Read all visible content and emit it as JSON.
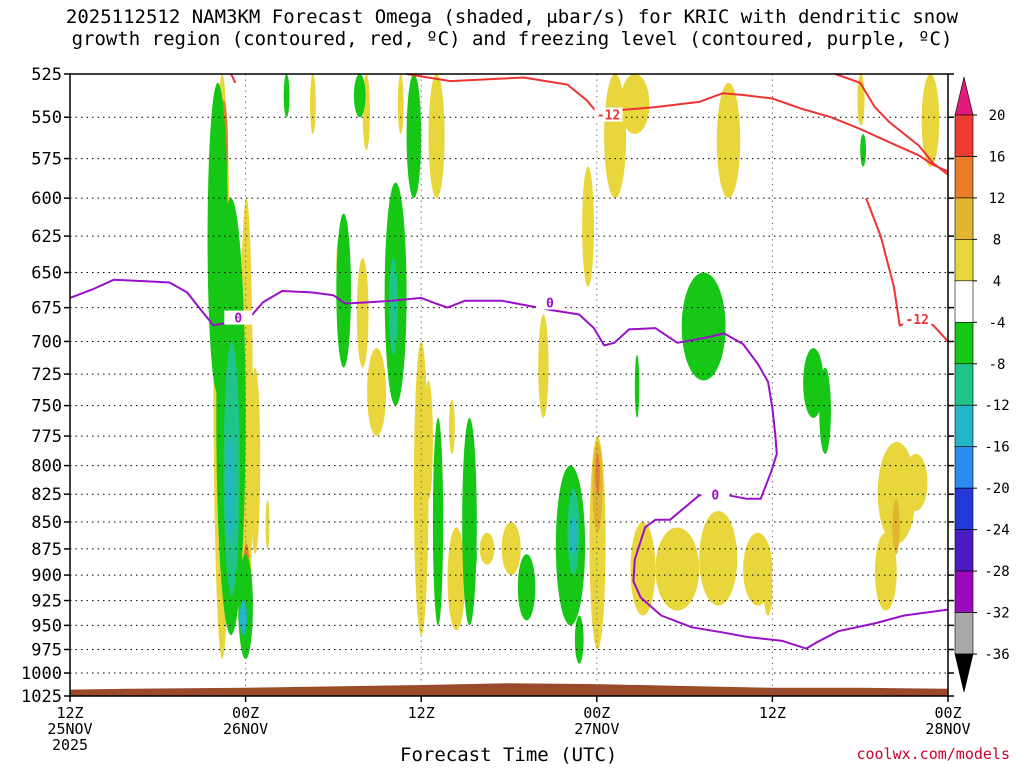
{
  "title_line1": "2025112512 NAM3KM Forecast Omega (shaded, μbar/s) for KRIC with dendritic snow",
  "title_line2": "growth region (contoured, red, ºC) and freezing level (contoured, purple, ºC)",
  "credit": "coolwx.com/models",
  "chart_data": {
    "type": "time-height cross section",
    "title": "2025112512 NAM3KM Forecast Omega (shaded, μbar/s) for KRIC with dendritic snow growth region (contoured, red, ºC) and freezing level (contoured, purple, ºC)",
    "xlabel": "Forecast Time (UTC)",
    "ylabel": "Pressure (hPa)",
    "x_range_hours": [
      0,
      60
    ],
    "y_range_hPa": [
      525,
      1025
    ],
    "y_ticks": [
      525,
      550,
      575,
      600,
      625,
      650,
      675,
      700,
      725,
      750,
      775,
      800,
      825,
      850,
      875,
      900,
      925,
      950,
      975,
      1000,
      1025
    ],
    "x_ticks": [
      {
        "hour": 0,
        "line1": "12Z",
        "line2": "25NOV",
        "line3": "2025"
      },
      {
        "hour": 12,
        "line1": "00Z",
        "line2": "26NOV",
        "line3": ""
      },
      {
        "hour": 24,
        "line1": "12Z",
        "line2": "",
        "line3": ""
      },
      {
        "hour": 36,
        "line1": "00Z",
        "line2": "27NOV",
        "line3": ""
      },
      {
        "hour": 48,
        "line1": "12Z",
        "line2": "",
        "line3": ""
      },
      {
        "hour": 60,
        "line1": "00Z",
        "line2": "28NOV",
        "line3": ""
      }
    ],
    "grid": "dotted",
    "colorbar": {
      "labels": [
        "20",
        "16",
        "12",
        "8",
        "4",
        "-4",
        "-8",
        "-12",
        "-16",
        "-20",
        "-24",
        "-28",
        "-32",
        "-36"
      ],
      "colors": [
        "#e21a7a",
        "#ee3b30",
        "#ea7d27",
        "#e2b531",
        "#e8d63c",
        "#ffffff",
        "#16c716",
        "#1ec488",
        "#22b6c8",
        "#2a8aee",
        "#2438d8",
        "#4b1cc6",
        "#9a0aba",
        "#a8a8a8",
        "#000000"
      ]
    },
    "contour_labels": {
      "dgz": "-12",
      "freezing": "0"
    },
    "dgz_contour": [
      {
        "name": "upper-left",
        "points": [
          [
            11.0,
            525
          ],
          [
            11.3,
            530
          ]
        ]
      },
      {
        "name": "upper",
        "points": [
          [
            23.0,
            525
          ],
          [
            26,
            529
          ],
          [
            31,
            527
          ],
          [
            34,
            531
          ],
          [
            35.3,
            540
          ],
          [
            36.2,
            549
          ],
          [
            37.3,
            546
          ],
          [
            40,
            544
          ],
          [
            43,
            541
          ],
          [
            44.6,
            536
          ],
          [
            46,
            537
          ],
          [
            48,
            539
          ],
          [
            50,
            545
          ],
          [
            52,
            550
          ],
          [
            54,
            557
          ],
          [
            56,
            565
          ],
          [
            58,
            573
          ],
          [
            59,
            579
          ],
          [
            60,
            583
          ]
        ]
      },
      {
        "name": "right",
        "points": [
          [
            52.3,
            525
          ],
          [
            54,
            530
          ],
          [
            55,
            544
          ],
          [
            56,
            553
          ],
          [
            58,
            567
          ],
          [
            59,
            578
          ],
          [
            60,
            585
          ]
        ]
      },
      {
        "name": "lower-right",
        "points": [
          [
            54.4,
            600
          ],
          [
            55.4,
            625
          ],
          [
            56.3,
            660
          ],
          [
            56.7,
            688
          ],
          [
            57.3,
            686
          ],
          [
            58,
            684
          ],
          [
            59,
            688
          ],
          [
            60,
            700
          ]
        ]
      }
    ],
    "freezing_contour": [
      {
        "name": "main",
        "points": [
          [
            0,
            668
          ],
          [
            1.5,
            662
          ],
          [
            3,
            655
          ],
          [
            5,
            656
          ],
          [
            6.8,
            657
          ],
          [
            8,
            664
          ],
          [
            8.6,
            672
          ],
          [
            9.8,
            688
          ],
          [
            10.8,
            686
          ],
          [
            11.7,
            680
          ],
          [
            12.3,
            682
          ],
          [
            13.2,
            671
          ],
          [
            14.5,
            663
          ],
          [
            16.5,
            664
          ],
          [
            18,
            666
          ],
          [
            18.8,
            672
          ],
          [
            20.6,
            671
          ],
          [
            22,
            670
          ],
          [
            24,
            668
          ],
          [
            25,
            672
          ],
          [
            25.8,
            675
          ],
          [
            27,
            670
          ],
          [
            29.5,
            670
          ],
          [
            31,
            673
          ],
          [
            33,
            677
          ],
          [
            34.8,
            680
          ],
          [
            35.8,
            690
          ],
          [
            36.5,
            703
          ],
          [
            37.2,
            701
          ],
          [
            38.2,
            691
          ],
          [
            40,
            690
          ],
          [
            41.5,
            701
          ],
          [
            43.5,
            697
          ],
          [
            44.7,
            694
          ],
          [
            46,
            702
          ],
          [
            47,
            717
          ],
          [
            47.7,
            731
          ],
          [
            48,
            752
          ],
          [
            48.2,
            774
          ],
          [
            48.3,
            790
          ],
          [
            47.9,
            806
          ],
          [
            47.2,
            829
          ],
          [
            46.2,
            829
          ],
          [
            45,
            826
          ],
          [
            43,
            826
          ],
          [
            42,
            837
          ],
          [
            41,
            848
          ],
          [
            40,
            848
          ],
          [
            39.3,
            855
          ],
          [
            38.6,
            885
          ],
          [
            38.5,
            906
          ],
          [
            39,
            922
          ],
          [
            40.4,
            940
          ],
          [
            42.5,
            952
          ],
          [
            44.5,
            957
          ],
          [
            46.3,
            962
          ],
          [
            48.7,
            966
          ],
          [
            50.3,
            974
          ],
          [
            51.1,
            967
          ],
          [
            52.5,
            956
          ],
          [
            55,
            948
          ],
          [
            57,
            940
          ],
          [
            60,
            934
          ]
        ]
      }
    ],
    "omega_regions": [
      {
        "sign": "up",
        "level": 4,
        "t0": 9.8,
        "t1": 11.0,
        "p0": 525,
        "p1": 985
      },
      {
        "sign": "up",
        "level": 12,
        "t0": 10.2,
        "t1": 10.8,
        "p0": 540,
        "p1": 600
      },
      {
        "sign": "up",
        "level": 8,
        "t0": 10.9,
        "t1": 11.7,
        "p0": 690,
        "p1": 860
      },
      {
        "sign": "up",
        "level": 12,
        "t0": 11.0,
        "t1": 11.5,
        "p0": 760,
        "p1": 830
      },
      {
        "sign": "up",
        "level": 4,
        "t0": 11.6,
        "t1": 12.5,
        "p0": 600,
        "p1": 975
      },
      {
        "sign": "up",
        "level": 12,
        "t0": 11.8,
        "t1": 12.3,
        "p0": 870,
        "p1": 950
      },
      {
        "sign": "up",
        "level": 16,
        "t0": 11.9,
        "t1": 12.2,
        "p0": 920,
        "p1": 940
      },
      {
        "sign": "up",
        "level": 4,
        "t0": 12.3,
        "t1": 13.0,
        "p0": 720,
        "p1": 880
      },
      {
        "sign": "up",
        "level": 4,
        "t0": 13.4,
        "t1": 13.6,
        "p0": 830,
        "p1": 875
      },
      {
        "sign": "up",
        "level": 4,
        "t0": 16.4,
        "t1": 16.8,
        "p0": 525,
        "p1": 560
      },
      {
        "sign": "up",
        "level": 4,
        "t0": 18.2,
        "t1": 18.6,
        "p0": 625,
        "p1": 665
      },
      {
        "sign": "up",
        "level": 4,
        "t0": 22.4,
        "t1": 22.8,
        "p0": 525,
        "p1": 560
      },
      {
        "sign": "up",
        "level": 4,
        "t0": 20.0,
        "t1": 20.5,
        "p0": 525,
        "p1": 570
      },
      {
        "sign": "up",
        "level": 4,
        "t0": 20.3,
        "t1": 21.6,
        "p0": 705,
        "p1": 775
      },
      {
        "sign": "up",
        "level": 4,
        "t0": 19.6,
        "t1": 20.4,
        "p0": 640,
        "p1": 720
      },
      {
        "sign": "up",
        "level": 4,
        "t0": 23.5,
        "t1": 24.5,
        "p0": 700,
        "p1": 960
      },
      {
        "sign": "up",
        "level": 4,
        "t0": 24.2,
        "t1": 24.8,
        "p0": 730,
        "p1": 830
      },
      {
        "sign": "up",
        "level": 4,
        "t0": 25.9,
        "t1": 26.3,
        "p0": 745,
        "p1": 790
      },
      {
        "sign": "up",
        "level": 4,
        "t0": 25.8,
        "t1": 27.0,
        "p0": 855,
        "p1": 955
      },
      {
        "sign": "up",
        "level": 4,
        "t0": 24.5,
        "t1": 25.6,
        "p0": 525,
        "p1": 600
      },
      {
        "sign": "up",
        "level": 4,
        "t0": 28.0,
        "t1": 29.0,
        "p0": 860,
        "p1": 890
      },
      {
        "sign": "up",
        "level": 4,
        "t0": 29.5,
        "t1": 30.8,
        "p0": 850,
        "p1": 900
      },
      {
        "sign": "up",
        "level": 4,
        "t0": 32.0,
        "t1": 32.7,
        "p0": 680,
        "p1": 760
      },
      {
        "sign": "up",
        "level": 4,
        "t0": 33.8,
        "t1": 34.8,
        "p0": 900,
        "p1": 925
      },
      {
        "sign": "up",
        "level": 4,
        "t0": 35.0,
        "t1": 35.8,
        "p0": 580,
        "p1": 660
      },
      {
        "sign": "up",
        "level": 4,
        "t0": 35.5,
        "t1": 36.6,
        "p0": 775,
        "p1": 975
      },
      {
        "sign": "up",
        "level": 8,
        "t0": 35.7,
        "t1": 36.4,
        "p0": 780,
        "p1": 860
      },
      {
        "sign": "up",
        "level": 12,
        "t0": 35.9,
        "t1": 36.2,
        "p0": 790,
        "p1": 825
      },
      {
        "sign": "up",
        "level": 4,
        "t0": 36.5,
        "t1": 38.0,
        "p0": 525,
        "p1": 600
      },
      {
        "sign": "up",
        "level": 4,
        "t0": 37.6,
        "t1": 39.6,
        "p0": 525,
        "p1": 560
      },
      {
        "sign": "up",
        "level": 4,
        "t0": 38.3,
        "t1": 40.0,
        "p0": 850,
        "p1": 940
      },
      {
        "sign": "up",
        "level": 4,
        "t0": 40.0,
        "t1": 43.0,
        "p0": 855,
        "p1": 935
      },
      {
        "sign": "up",
        "level": 4,
        "t0": 43.0,
        "t1": 45.6,
        "p0": 840,
        "p1": 930
      },
      {
        "sign": "up",
        "level": 4,
        "t0": 46.0,
        "t1": 48.0,
        "p0": 860,
        "p1": 930
      },
      {
        "sign": "up",
        "level": 4,
        "t0": 44.2,
        "t1": 45.8,
        "p0": 530,
        "p1": 600
      },
      {
        "sign": "up",
        "level": 4,
        "t0": 47.4,
        "t1": 48.0,
        "p0": 890,
        "p1": 940
      },
      {
        "sign": "up",
        "level": 4,
        "t0": 53.8,
        "t1": 54.3,
        "p0": 525,
        "p1": 555
      },
      {
        "sign": "up",
        "level": 4,
        "t0": 55.2,
        "t1": 57.8,
        "p0": 780,
        "p1": 870
      },
      {
        "sign": "up",
        "level": 8,
        "t0": 56.2,
        "t1": 56.7,
        "p0": 830,
        "p1": 880
      },
      {
        "sign": "up",
        "level": 4,
        "t0": 57.0,
        "t1": 58.6,
        "p0": 790,
        "p1": 840
      },
      {
        "sign": "up",
        "level": 4,
        "t0": 58.2,
        "t1": 59.4,
        "p0": 525,
        "p1": 580
      },
      {
        "sign": "up",
        "level": 4,
        "t0": 55.0,
        "t1": 56.5,
        "p0": 860,
        "p1": 935
      },
      {
        "sign": "down",
        "level": -4,
        "t0": 9.4,
        "t1": 10.8,
        "p0": 530,
        "p1": 740
      },
      {
        "sign": "down",
        "level": -4,
        "t0": 10.0,
        "t1": 12.0,
        "p0": 600,
        "p1": 960
      },
      {
        "sign": "down",
        "level": -8,
        "t0": 10.5,
        "t1": 11.6,
        "p0": 700,
        "p1": 920
      },
      {
        "sign": "down",
        "level": -12,
        "t0": 10.7,
        "t1": 11.2,
        "p0": 775,
        "p1": 870
      },
      {
        "sign": "down",
        "level": -4,
        "t0": 11.5,
        "t1": 12.5,
        "p0": 880,
        "p1": 985
      },
      {
        "sign": "down",
        "level": -12,
        "t0": 11.6,
        "t1": 12.1,
        "p0": 925,
        "p1": 960
      },
      {
        "sign": "down",
        "level": -4,
        "t0": 14.6,
        "t1": 15.0,
        "p0": 525,
        "p1": 550
      },
      {
        "sign": "down",
        "level": -4,
        "t0": 18.2,
        "t1": 19.2,
        "p0": 610,
        "p1": 720
      },
      {
        "sign": "down",
        "level": -4,
        "t0": 19.4,
        "t1": 20.2,
        "p0": 525,
        "p1": 550
      },
      {
        "sign": "down",
        "level": -4,
        "t0": 21.5,
        "t1": 23.0,
        "p0": 590,
        "p1": 750
      },
      {
        "sign": "down",
        "level": -8,
        "t0": 21.8,
        "t1": 22.4,
        "p0": 640,
        "p1": 710
      },
      {
        "sign": "down",
        "level": -4,
        "t0": 23.0,
        "t1": 24.0,
        "p0": 525,
        "p1": 600
      },
      {
        "sign": "down",
        "level": -4,
        "t0": 24.8,
        "t1": 25.5,
        "p0": 760,
        "p1": 950
      },
      {
        "sign": "down",
        "level": -4,
        "t0": 26.8,
        "t1": 27.8,
        "p0": 760,
        "p1": 950
      },
      {
        "sign": "down",
        "level": -4,
        "t0": 27.3,
        "t1": 27.8,
        "p0": 860,
        "p1": 900
      },
      {
        "sign": "down",
        "level": -4,
        "t0": 30.6,
        "t1": 31.8,
        "p0": 880,
        "p1": 945
      },
      {
        "sign": "down",
        "level": -4,
        "t0": 33.2,
        "t1": 35.2,
        "p0": 800,
        "p1": 950
      },
      {
        "sign": "down",
        "level": -8,
        "t0": 34.0,
        "t1": 34.8,
        "p0": 820,
        "p1": 900
      },
      {
        "sign": "down",
        "level": -12,
        "t0": 34.2,
        "t1": 34.6,
        "p0": 845,
        "p1": 880
      },
      {
        "sign": "down",
        "level": -4,
        "t0": 34.5,
        "t1": 35.1,
        "p0": 940,
        "p1": 990
      },
      {
        "sign": "down",
        "level": -4,
        "t0": 38.6,
        "t1": 38.9,
        "p0": 710,
        "p1": 760
      },
      {
        "sign": "down",
        "level": -4,
        "t0": 41.8,
        "t1": 44.8,
        "p0": 650,
        "p1": 730
      },
      {
        "sign": "down",
        "level": -4,
        "t0": 50.1,
        "t1": 51.5,
        "p0": 705,
        "p1": 760
      },
      {
        "sign": "down",
        "level": -4,
        "t0": 51.2,
        "t1": 52.0,
        "p0": 720,
        "p1": 790
      },
      {
        "sign": "down",
        "level": -4,
        "t0": 54.0,
        "t1": 54.4,
        "p0": 560,
        "p1": 580
      }
    ],
    "terrain_top_hPa": [
      [
        0,
        1018
      ],
      [
        4,
        1017
      ],
      [
        12,
        1016
      ],
      [
        24,
        1013
      ],
      [
        30,
        1011
      ],
      [
        36,
        1012
      ],
      [
        42,
        1014
      ],
      [
        48,
        1016
      ],
      [
        54,
        1016
      ],
      [
        60,
        1017
      ]
    ]
  }
}
